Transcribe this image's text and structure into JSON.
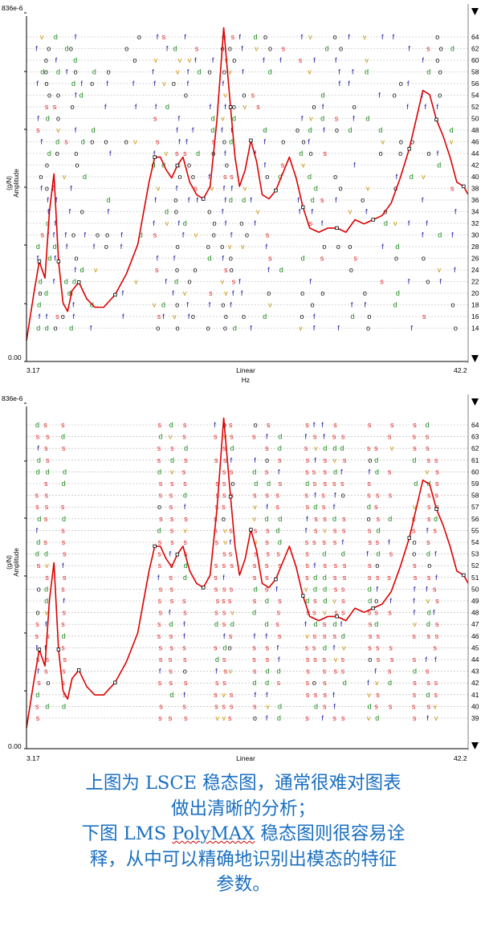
{
  "charts": [
    {
      "id": "top",
      "y_top_label": "836e-6",
      "y_bottom_label": "0.00",
      "x_left_label": "3.17",
      "x_right_label": "42.2",
      "x_mid_label": "Linear",
      "x_unit_label": "Hz",
      "ylabel_line1": "(g/N)",
      "ylabel_line2": "Amplitude",
      "orders": [
        64,
        62,
        60,
        58,
        56,
        54,
        52,
        50,
        48,
        46,
        44,
        42,
        40,
        38,
        36,
        34,
        32,
        30,
        28,
        26,
        24,
        22,
        20,
        18,
        16,
        14
      ]
    },
    {
      "id": "bottom",
      "y_top_label": "836e-6",
      "y_bottom_label": "0.00",
      "x_left_label": "3.17",
      "x_right_label": "42.2",
      "x_mid_label": "Linear",
      "orders": [
        64,
        63,
        62,
        61,
        60,
        59,
        58,
        57,
        56,
        55,
        54,
        53,
        52,
        51,
        50,
        49,
        48,
        47,
        46,
        45,
        44,
        43,
        42,
        41,
        40,
        39
      ]
    }
  ],
  "chart_data": [
    {
      "type": "line",
      "title": "",
      "xlabel": "Hz",
      "ylabel": "(g/N) Amplitude",
      "xlim": [
        3.17,
        42.2
      ],
      "ylim": [
        0,
        0.000836
      ],
      "x_scale": "linear",
      "series": [
        {
          "name": "",
          "color": "#dd0000",
          "x": [
            3.17,
            3.8,
            4.3,
            4.8,
            5.2,
            5.6,
            6.0,
            6.4,
            6.8,
            7.2,
            7.8,
            8.5,
            9.2,
            10.0,
            11.0,
            12.0,
            13.0,
            14.0,
            14.5,
            15.0,
            15.5,
            16.0,
            16.5,
            17.0,
            17.6,
            18.2,
            18.8,
            19.4,
            20.0,
            20.6,
            21.2,
            21.6,
            22.0,
            22.5,
            23.0,
            23.5,
            24.0,
            24.6,
            25.2,
            25.8,
            26.4,
            27.0,
            27.6,
            28.2,
            29.0,
            29.8,
            30.6,
            31.4,
            32.2,
            33.0,
            33.8,
            34.6,
            35.4,
            36.2,
            37.0,
            37.6,
            38.2,
            38.8,
            39.4,
            40.0,
            40.6,
            41.2,
            41.8,
            42.2
          ],
          "y": [
            5e-05,
            0.00016,
            0.00024,
            0.0002,
            0.00036,
            0.00045,
            0.00024,
            0.00014,
            0.00012,
            0.00017,
            0.00019,
            0.00015,
            0.00013,
            0.00013,
            0.00016,
            0.00021,
            0.00028,
            0.00043,
            0.00049,
            0.00049,
            0.00046,
            0.00044,
            0.00047,
            0.00049,
            0.00043,
            0.0004,
            0.00039,
            0.00042,
            0.00058,
            0.0008,
            0.00061,
            0.00049,
            0.00042,
            0.00046,
            0.00053,
            0.00048,
            0.0004,
            0.00039,
            0.00041,
            0.00045,
            0.00049,
            0.00044,
            0.00037,
            0.00032,
            0.00031,
            0.00032,
            0.00032,
            0.00031,
            0.00034,
            0.00033,
            0.00034,
            0.00035,
            0.00038,
            0.00044,
            0.00051,
            0.00058,
            0.00065,
            0.00064,
            0.00058,
            0.00054,
            0.00049,
            0.00043,
            0.00042,
            0.0004
          ]
        }
      ],
      "stabilization_symbols": [
        "o",
        "f",
        "d",
        "v",
        "s"
      ],
      "model_orders": [
        64,
        62,
        60,
        58,
        56,
        54,
        52,
        50,
        48,
        46,
        44,
        42,
        40,
        38,
        36,
        34,
        32,
        30,
        28,
        26,
        24,
        22,
        20,
        18,
        16,
        14
      ]
    },
    {
      "type": "line",
      "title": "",
      "xlabel": "",
      "ylabel": "(g/N) Amplitude",
      "xlim": [
        3.17,
        42.2
      ],
      "ylim": [
        0,
        0.000836
      ],
      "x_scale": "linear",
      "series": [
        {
          "name": "",
          "color": "#dd0000",
          "x": [
            3.17,
            3.8,
            4.3,
            4.8,
            5.2,
            5.6,
            6.0,
            6.4,
            6.8,
            7.2,
            7.8,
            8.5,
            9.2,
            10.0,
            11.0,
            12.0,
            13.0,
            14.0,
            14.5,
            15.0,
            15.5,
            16.0,
            16.5,
            17.0,
            17.6,
            18.2,
            18.8,
            19.4,
            20.0,
            20.6,
            21.2,
            21.6,
            22.0,
            22.5,
            23.0,
            23.5,
            24.0,
            24.6,
            25.2,
            25.8,
            26.4,
            27.0,
            27.6,
            28.2,
            29.0,
            29.8,
            30.6,
            31.4,
            32.2,
            33.0,
            33.8,
            34.6,
            35.4,
            36.2,
            37.0,
            37.6,
            38.2,
            38.8,
            39.4,
            40.0,
            40.6,
            41.2,
            41.8,
            42.2
          ],
          "y": [
            5e-05,
            0.00016,
            0.00024,
            0.0002,
            0.00036,
            0.00045,
            0.00024,
            0.00014,
            0.00012,
            0.00017,
            0.00019,
            0.00015,
            0.00013,
            0.00013,
            0.00016,
            0.00021,
            0.00028,
            0.00043,
            0.00049,
            0.00049,
            0.00046,
            0.00044,
            0.00047,
            0.00049,
            0.00043,
            0.0004,
            0.00039,
            0.00042,
            0.00058,
            0.0008,
            0.00061,
            0.00049,
            0.00042,
            0.00046,
            0.00053,
            0.00048,
            0.0004,
            0.00039,
            0.00041,
            0.00045,
            0.00049,
            0.00044,
            0.00037,
            0.00032,
            0.00031,
            0.00032,
            0.00032,
            0.00031,
            0.00034,
            0.00033,
            0.00034,
            0.00035,
            0.00038,
            0.00044,
            0.00051,
            0.00058,
            0.00065,
            0.00064,
            0.00058,
            0.00054,
            0.00049,
            0.00043,
            0.00042,
            0.0004
          ]
        }
      ],
      "stabilization_symbols": [
        "s",
        "f",
        "d",
        "v",
        "o"
      ],
      "model_orders": [
        64,
        63,
        62,
        61,
        60,
        59,
        58,
        57,
        56,
        55,
        54,
        53,
        52,
        51,
        50,
        49,
        48,
        47,
        46,
        45,
        44,
        43,
        42,
        41,
        40,
        39
      ]
    }
  ],
  "caption": {
    "line1": "上图为 LSCE 稳态图，通常很难对图表",
    "line2": "做出清晰的分析；",
    "line3_before": "下图 LMS ",
    "line3_wavy": "PolyMAX",
    "line3_after": " 稳态图则很容易诠",
    "line4": "释，从中可以精确地识别出模态的特征",
    "line5": "参数。"
  },
  "colors": {
    "curve": "#dd0000",
    "o_symbol": "#111111",
    "f_symbol": "#1a1aa0",
    "d_symbol": "#1a8a1a",
    "v_symbol": "#c89000",
    "s_symbol": "#dd2222",
    "grid": "#b0b0b0",
    "caption": "#1a6fc0"
  }
}
